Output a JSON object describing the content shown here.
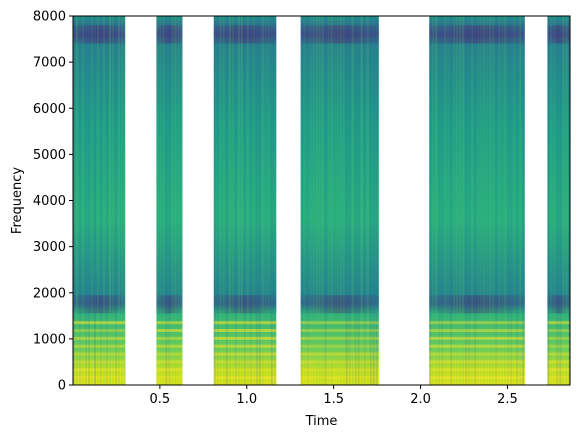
{
  "chart_data": {
    "type": "heatmap",
    "subtype": "spectrogram",
    "colormap": "viridis",
    "xlabel": "Time",
    "ylabel": "Frequency",
    "xlim": [
      0.0,
      2.86
    ],
    "ylim": [
      0,
      8000
    ],
    "x_ticks": [
      0.5,
      1.0,
      1.5,
      2.0,
      2.5
    ],
    "x_tick_labels": [
      "0.5",
      "1.0",
      "1.5",
      "2.0",
      "2.5"
    ],
    "y_ticks": [
      0,
      1000,
      2000,
      3000,
      4000,
      5000,
      6000,
      7000,
      8000
    ],
    "y_tick_labels": [
      "0",
      "1000",
      "2000",
      "3000",
      "4000",
      "5000",
      "6000",
      "7000",
      "8000"
    ],
    "grid": false,
    "silent_gaps": [
      [
        0.3,
        0.48
      ],
      [
        0.63,
        0.81
      ],
      [
        1.17,
        1.31
      ],
      [
        1.76,
        2.05
      ],
      [
        2.6,
        2.73
      ]
    ],
    "voiced_segments": [
      {
        "start": 0.0,
        "end": 0.3
      },
      {
        "start": 0.48,
        "end": 0.63
      },
      {
        "start": 0.81,
        "end": 1.17
      },
      {
        "start": 1.31,
        "end": 1.76
      },
      {
        "start": 2.05,
        "end": 2.6
      },
      {
        "start": 2.73,
        "end": 2.86
      }
    ],
    "dark_bands_hz": [
      1750,
      7600
    ]
  }
}
